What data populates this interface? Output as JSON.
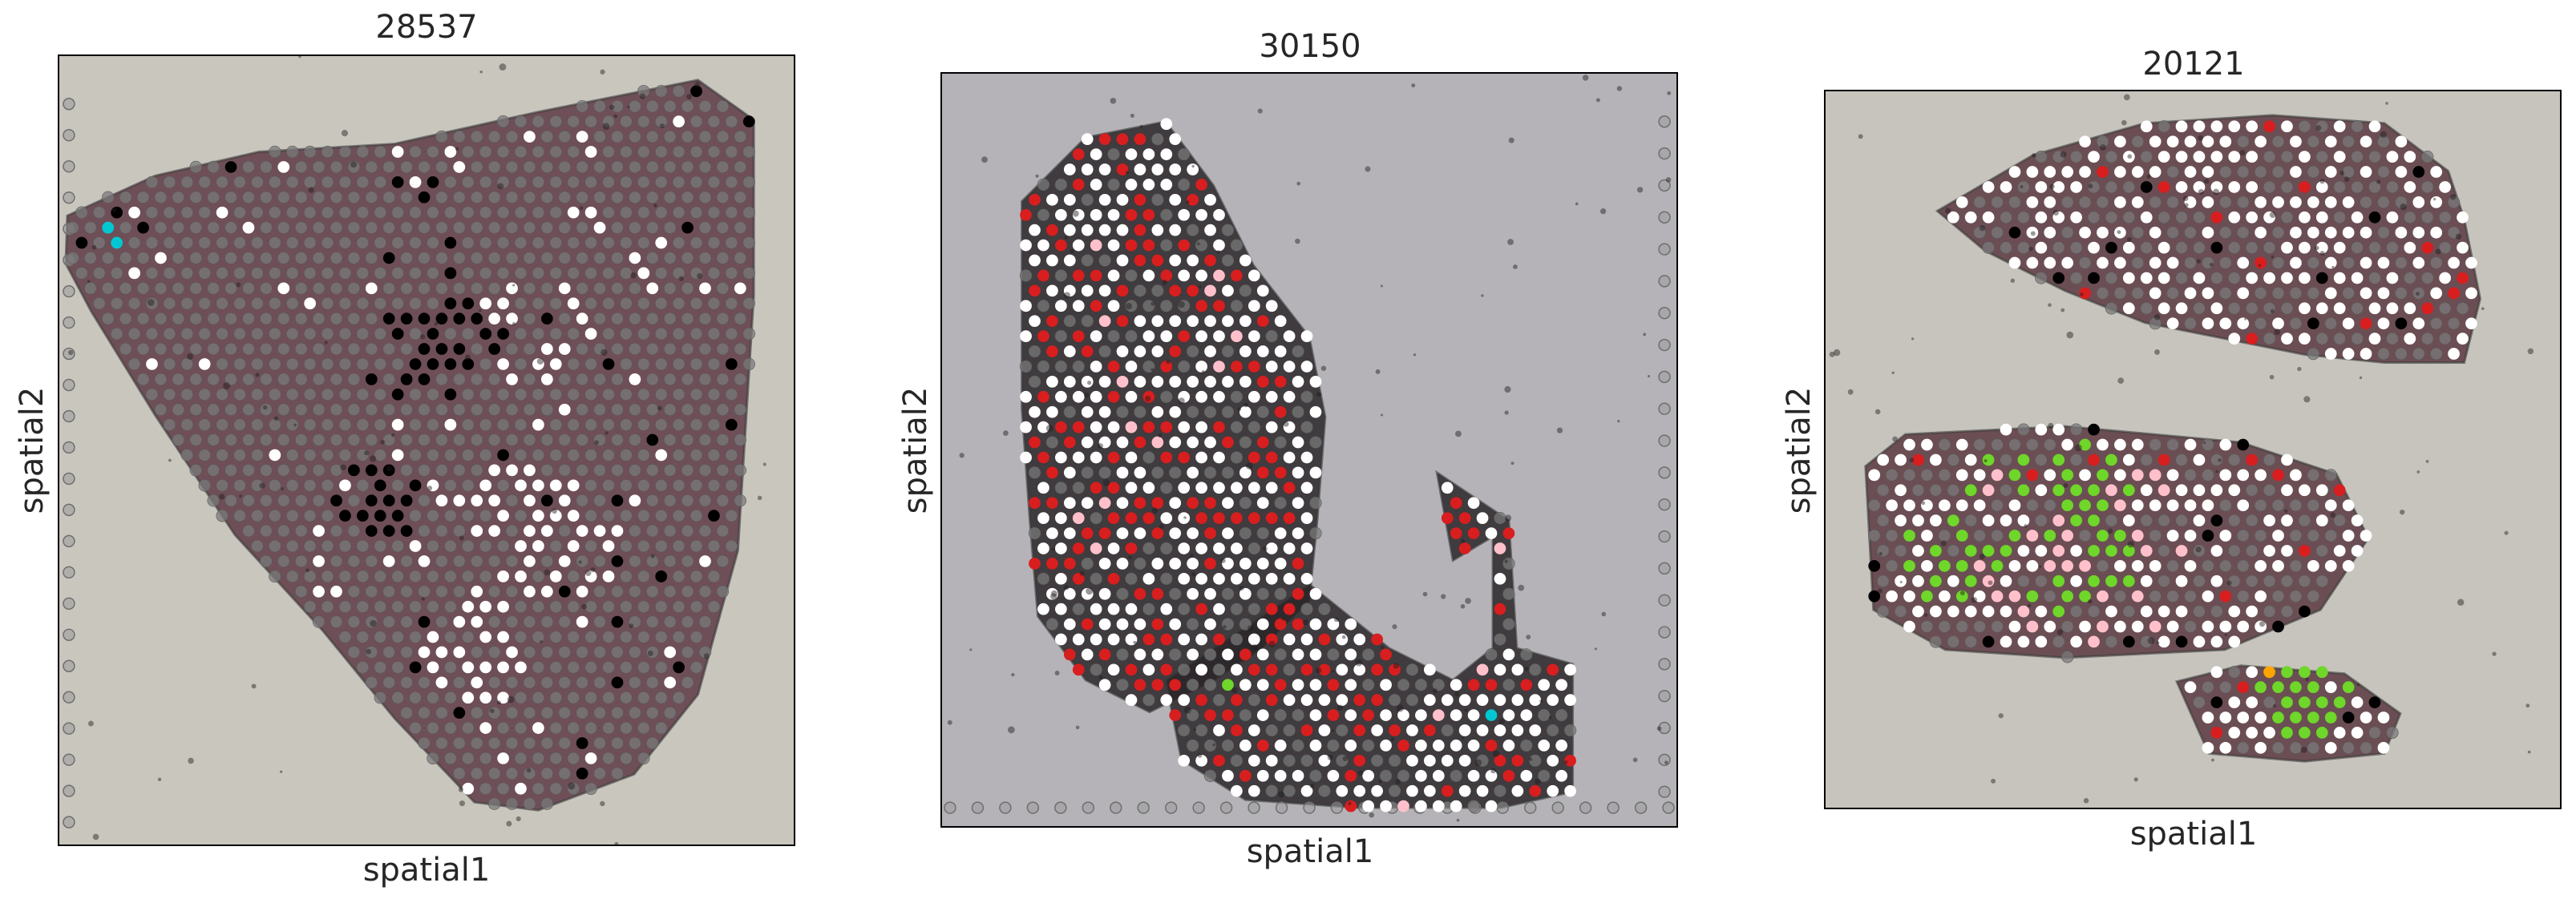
{
  "chart_data": [
    {
      "type": "scatter",
      "title": "28537",
      "xlabel": "spatial1",
      "ylabel": "spatial2",
      "grid": false,
      "colors": {
        "background_tissue": "#c9c6be",
        "tissue": "#5e3a45",
        "spot_unlabeled": "#7a7a7a",
        "highlight": [
          "#ffffff",
          "#000000",
          "#00c8d2"
        ]
      }
    },
    {
      "type": "scatter",
      "title": "30150",
      "xlabel": "spatial1",
      "ylabel": "spatial2",
      "grid": false,
      "colors": {
        "background_tissue": "#b5b3b8",
        "tissue": "#2a2628",
        "spot_unlabeled": "#7a7a7a",
        "highlight": [
          "#ffffff",
          "#d81e1e",
          "#ffc0cb",
          "#00c8d2",
          "#6fd62a"
        ]
      }
    },
    {
      "type": "scatter",
      "title": "20121",
      "xlabel": "spatial1",
      "ylabel": "spatial2",
      "grid": false,
      "colors": {
        "background_tissue": "#c6c4bc",
        "tissue": "#5a3a42",
        "spot_unlabeled": "#7a7a7a",
        "highlight": [
          "#ffffff",
          "#d81e1e",
          "#ffc0cb",
          "#6fd62a",
          "#000000",
          "#ffa500"
        ]
      }
    }
  ]
}
